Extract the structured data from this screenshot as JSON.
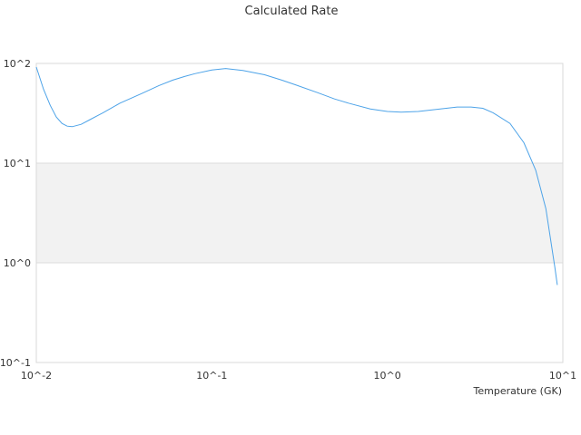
{
  "chart_data": {
    "type": "line",
    "title": "Calculated Rate",
    "xlabel": "Temperature (GK)",
    "ylabel": "",
    "x_scale": "log",
    "y_scale": "log",
    "xlim": [
      0.01,
      10
    ],
    "ylim": [
      0.1,
      100
    ],
    "x_ticks": [
      "10^-2",
      "10^-1",
      "10^0",
      "10^1"
    ],
    "y_ticks": [
      "10^-1",
      "10^0",
      "10^1",
      "10^2"
    ],
    "grid": true,
    "alternating_band": true,
    "series": [
      {
        "color": "#4da3e8",
        "points": [
          [
            0.01,
            92
          ],
          [
            0.011,
            55
          ],
          [
            0.012,
            38
          ],
          [
            0.013,
            29
          ],
          [
            0.014,
            25
          ],
          [
            0.015,
            23.5
          ],
          [
            0.016,
            23.2
          ],
          [
            0.018,
            24.5
          ],
          [
            0.02,
            27
          ],
          [
            0.024,
            32
          ],
          [
            0.03,
            40
          ],
          [
            0.04,
            50
          ],
          [
            0.05,
            60
          ],
          [
            0.06,
            68
          ],
          [
            0.07,
            74
          ],
          [
            0.08,
            79
          ],
          [
            0.1,
            86
          ],
          [
            0.12,
            89
          ],
          [
            0.15,
            85
          ],
          [
            0.2,
            77
          ],
          [
            0.25,
            68
          ],
          [
            0.3,
            61
          ],
          [
            0.4,
            51
          ],
          [
            0.5,
            44
          ],
          [
            0.6,
            40
          ],
          [
            0.8,
            35
          ],
          [
            1.0,
            33
          ],
          [
            1.2,
            32.5
          ],
          [
            1.5,
            33
          ],
          [
            2.0,
            35
          ],
          [
            2.5,
            36.5
          ],
          [
            3.0,
            36.5
          ],
          [
            3.5,
            35.5
          ],
          [
            4.0,
            32
          ],
          [
            5.0,
            25
          ],
          [
            6.0,
            16
          ],
          [
            7.0,
            8.5
          ],
          [
            8.0,
            3.5
          ],
          [
            9.0,
            0.9
          ],
          [
            9.3,
            0.6
          ]
        ]
      }
    ]
  }
}
